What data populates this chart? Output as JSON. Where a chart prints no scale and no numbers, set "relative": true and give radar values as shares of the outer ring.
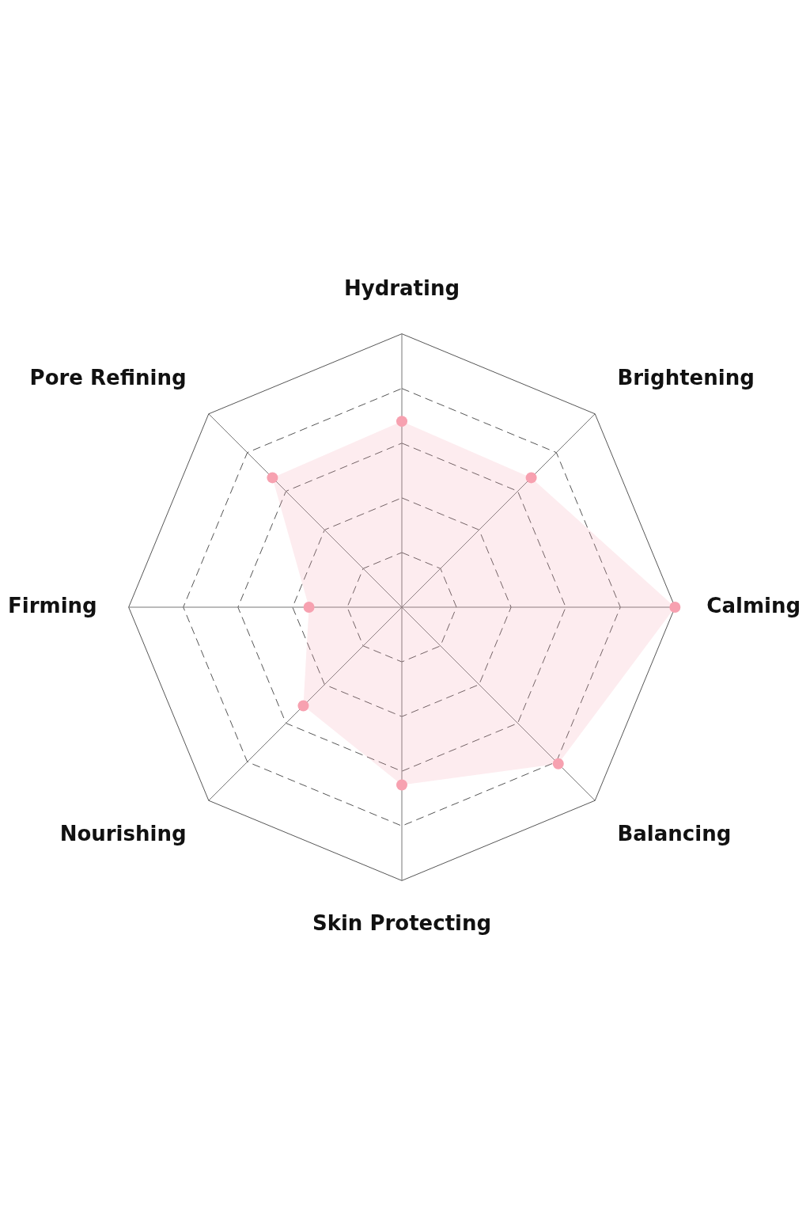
{
  "chart_data": {
    "type": "radar",
    "relative": true,
    "categories": [
      "Hydrating",
      "Brightening",
      "Calming",
      "Balancing",
      "Skin Protecting",
      "Nourishing",
      "Firming",
      "Pore Refining"
    ],
    "series": [
      {
        "color": "#f7a1b0",
        "values": [
          0.68,
          0.67,
          1.0,
          0.81,
          0.65,
          0.51,
          0.34,
          0.67
        ]
      }
    ],
    "grid": true,
    "legend": false,
    "marker": "circle"
  }
}
